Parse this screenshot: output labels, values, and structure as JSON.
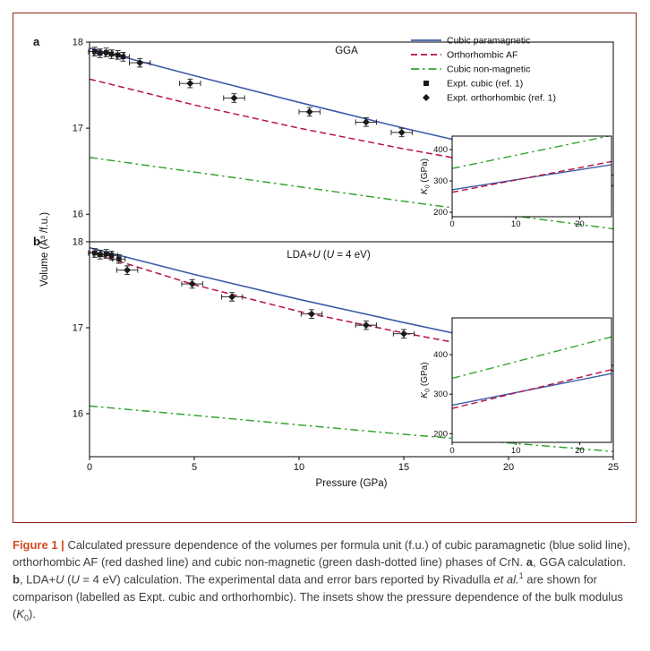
{
  "colors": {
    "figure_border": "#8e2a1d",
    "caption_label": "#d34a1d",
    "frame": "#000000",
    "marker": "#1a1a1a",
    "error_bar": "#1a1a1a",
    "blue_line": "#3d5ba9",
    "red_line": "#b5123f",
    "green_line": "#33a532"
  },
  "figure": {
    "panel_labels": [
      "a",
      "b"
    ],
    "x_axis_label": "Pressure (GPa)",
    "y_axis_label": "Volume (Å³ /f.u.)",
    "legend": [
      {
        "label": "Cubic paramagnetic",
        "swatch": "line",
        "color": "#3d5ba9",
        "style": "solid"
      },
      {
        "label": "Orthorhombic AF",
        "swatch": "line",
        "color": "#b5123f",
        "style": "dashed"
      },
      {
        "label": "Cubic non-magnetic",
        "swatch": "line",
        "color": "#33a532",
        "style": "dashdot"
      },
      {
        "label": "Expt. cubic (ref. 1)",
        "swatch": "marker",
        "shape": "square",
        "color": "#1a1a1a"
      },
      {
        "label": "Expt. orthorhombic (ref. 1)",
        "swatch": "marker",
        "shape": "diamond",
        "color": "#1a1a1a"
      }
    ]
  },
  "chart_data": [
    {
      "type": "line",
      "panel": "a",
      "title": "GGA",
      "title_parts": [
        {
          "t": "GGA"
        }
      ],
      "xlabel": "Pressure (GPa)",
      "ylabel": "Volume (Å³ /f.u.)",
      "xlim": [
        0,
        25
      ],
      "ylim": [
        15.68,
        18
      ],
      "xticks": [
        0,
        5,
        10,
        15,
        20,
        25
      ],
      "yticks": [
        16,
        17,
        18
      ],
      "series": [
        {
          "name": "Cubic paramagnetic",
          "color": "#3d5ba9",
          "style": "solid",
          "x": [
            0,
            5,
            10,
            15,
            20,
            25
          ],
          "y": [
            17.93,
            17.61,
            17.3,
            17.0,
            16.72,
            16.45
          ]
        },
        {
          "name": "Orthorhombic AF",
          "color": "#b5123f",
          "style": "dashed",
          "x": [
            0,
            5,
            10,
            15,
            20,
            25
          ],
          "y": [
            17.57,
            17.27,
            17.0,
            16.76,
            16.54,
            16.33
          ]
        },
        {
          "name": "Cubic non-magnetic",
          "color": "#33a532",
          "style": "dashdot",
          "x": [
            0,
            5,
            10,
            15,
            20,
            25
          ],
          "y": [
            16.66,
            16.49,
            16.32,
            16.15,
            15.99,
            15.83
          ]
        }
      ],
      "expt": [
        {
          "name": "Expt. cubic (ref. 1)",
          "marker": "square",
          "xerr": 0.3,
          "yerr": 0.05,
          "points": [
            [
              0.25,
              17.89
            ],
            [
              0.5,
              17.87
            ],
            [
              0.8,
              17.88
            ],
            [
              1.05,
              17.86
            ],
            [
              1.35,
              17.85
            ],
            [
              1.6,
              17.83
            ]
          ]
        },
        {
          "name": "Expt. orthorhombic (ref. 1)",
          "marker": "diamond",
          "xerr": 0.5,
          "yerr": 0.05,
          "points": [
            [
              2.4,
              17.76
            ],
            [
              4.8,
              17.52
            ],
            [
              6.9,
              17.35
            ],
            [
              10.5,
              17.19
            ],
            [
              13.2,
              17.07
            ],
            [
              14.9,
              16.95
            ]
          ]
        }
      ],
      "inset": {
        "ylabel": "K0 (GPa)",
        "ylabel_parts": [
          {
            "t": "K",
            "i": true
          },
          {
            "t": "0",
            "sub": true
          },
          {
            "t": " (GPa)"
          }
        ],
        "xlim": [
          0,
          25
        ],
        "ylim": [
          186,
          443
        ],
        "xticks": [
          0,
          10,
          20
        ],
        "yticks": [
          200,
          300,
          400
        ],
        "series": [
          {
            "name": "Cubic paramagnetic",
            "color": "#3d5ba9",
            "style": "solid",
            "x": [
              0,
              25
            ],
            "y": [
              272,
              352
            ]
          },
          {
            "name": "Orthorhombic AF",
            "color": "#b5123f",
            "style": "dashed",
            "x": [
              0,
              25
            ],
            "y": [
              264,
              362
            ]
          },
          {
            "name": "Cubic non-magnetic",
            "color": "#33a532",
            "style": "dashdot",
            "x": [
              0,
              25
            ],
            "y": [
              340,
              445
            ]
          }
        ]
      }
    },
    {
      "type": "line",
      "panel": "b",
      "title": "LDA+U (U = 4 eV)",
      "title_parts": [
        {
          "t": "LDA+"
        },
        {
          "t": "U",
          "i": true
        },
        {
          "t": " ("
        },
        {
          "t": "U",
          "i": true
        },
        {
          "t": " = 4 eV)"
        }
      ],
      "xlabel": "Pressure (GPa)",
      "ylabel": "Volume (Å³ /f.u.)",
      "xlim": [
        0,
        25
      ],
      "ylim": [
        15.5,
        18
      ],
      "xticks": [
        0,
        5,
        10,
        15,
        20,
        25
      ],
      "yticks": [
        16,
        17,
        18
      ],
      "series": [
        {
          "name": "Cubic paramagnetic",
          "color": "#3d5ba9",
          "style": "solid",
          "x": [
            0,
            5,
            10,
            15,
            20,
            25
          ],
          "y": [
            17.93,
            17.62,
            17.33,
            17.06,
            16.8,
            16.56
          ]
        },
        {
          "name": "Orthorhombic AF",
          "color": "#b5123f",
          "style": "dashed",
          "x": [
            0,
            5,
            10,
            15,
            20,
            25
          ],
          "y": [
            17.88,
            17.5,
            17.19,
            16.94,
            16.71,
            16.5
          ]
        },
        {
          "name": "Cubic non-magnetic",
          "color": "#33a532",
          "style": "dashdot",
          "x": [
            0,
            5,
            10,
            15,
            20,
            25
          ],
          "y": [
            16.09,
            15.98,
            15.87,
            15.76,
            15.66,
            15.56
          ]
        }
      ],
      "expt": [
        {
          "name": "Expt. cubic (ref. 1)",
          "marker": "square",
          "xerr": 0.3,
          "yerr": 0.05,
          "points": [
            [
              0.25,
              17.87
            ],
            [
              0.5,
              17.85
            ],
            [
              0.8,
              17.86
            ],
            [
              1.05,
              17.84
            ],
            [
              1.4,
              17.8
            ]
          ]
        },
        {
          "name": "Expt. orthorhombic (ref. 1)",
          "marker": "diamond",
          "xerr": 0.5,
          "yerr": 0.05,
          "points": [
            [
              1.8,
              17.67
            ],
            [
              4.9,
              17.51
            ],
            [
              6.8,
              17.36
            ],
            [
              10.6,
              17.16
            ],
            [
              13.2,
              17.03
            ],
            [
              15.0,
              16.93
            ]
          ]
        }
      ],
      "inset": {
        "ylabel": "K0 (GPa)",
        "ylabel_parts": [
          {
            "t": "K",
            "i": true
          },
          {
            "t": "0",
            "sub": true
          },
          {
            "t": " (GPa)"
          }
        ],
        "xlim": [
          0,
          25
        ],
        "ylim": [
          178,
          493
        ],
        "xticks": [
          0,
          10,
          20
        ],
        "yticks": [
          200,
          300,
          400
        ],
        "series": [
          {
            "name": "Cubic paramagnetic",
            "color": "#3d5ba9",
            "style": "solid",
            "x": [
              0,
              25
            ],
            "y": [
              272,
              352
            ]
          },
          {
            "name": "Orthorhombic AF",
            "color": "#b5123f",
            "style": "dashed",
            "x": [
              0,
              25
            ],
            "y": [
              264,
              362
            ]
          },
          {
            "name": "Cubic non-magnetic",
            "color": "#33a532",
            "style": "dashdot",
            "x": [
              0,
              25
            ],
            "y": [
              340,
              445
            ]
          }
        ]
      }
    }
  ],
  "caption": {
    "parts": [
      "Figure 1 | ",
      "Calculated pressure dependence of the volumes per formula unit (f.u.) of cubic paramagnetic (blue solid line), orthorhombic AF (red dashed line) and cubic non-magnetic (green dash-dotted line) phases of CrN. ",
      "a",
      ", GGA calculation. ",
      "b",
      ", LDA+",
      "U",
      " (",
      "U",
      " = 4 eV) calculation. The experimental data and error bars reported by Rivadulla ",
      "et al.",
      "1",
      " are shown for comparison (labelled as Expt. cubic and orthorhombic). The insets show the pressure dependence of the bulk modulus (",
      "K",
      "0",
      ")."
    ]
  }
}
